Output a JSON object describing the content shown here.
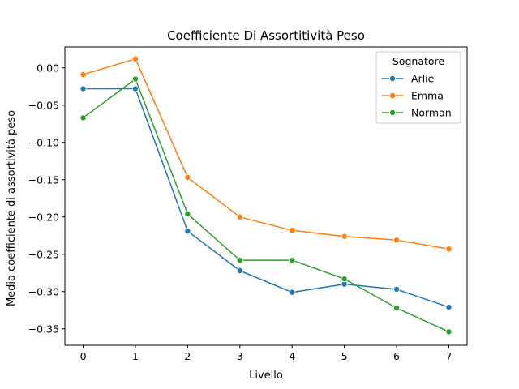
{
  "chart_data": {
    "type": "line",
    "title": "Coefficiente Di Assortitività Peso",
    "xlabel": "Livello",
    "ylabel": "Media coefficiente di assortività peso",
    "x": [
      0,
      1,
      2,
      3,
      4,
      5,
      6,
      7
    ],
    "xlim": [
      -0.35,
      7.35
    ],
    "ylim": [
      -0.372,
      0.028
    ],
    "yticks": [
      0.0,
      -0.05,
      -0.1,
      -0.15,
      -0.2,
      -0.25,
      -0.3,
      -0.35
    ],
    "ytick_labels": [
      "0.00",
      "−0.05",
      "−0.10",
      "−0.15",
      "−0.20",
      "−0.25",
      "−0.30",
      "−0.35"
    ],
    "xtick_labels": [
      "0",
      "1",
      "2",
      "3",
      "4",
      "5",
      "6",
      "7"
    ],
    "grid": false,
    "legend": {
      "title": "Sognatore",
      "placement": "top-right"
    },
    "series": [
      {
        "name": "Arlie",
        "color": "#1f77b4",
        "values": [
          -0.028,
          -0.028,
          -0.219,
          -0.272,
          -0.301,
          -0.29,
          -0.297,
          -0.321
        ]
      },
      {
        "name": "Emma",
        "color": "#ff7f0e",
        "values": [
          -0.009,
          0.012,
          -0.147,
          -0.2,
          -0.218,
          -0.226,
          -0.231,
          -0.243
        ]
      },
      {
        "name": "Norman",
        "color": "#2ca02c",
        "values": [
          -0.067,
          -0.015,
          -0.196,
          -0.258,
          -0.258,
          -0.283,
          -0.322,
          -0.354
        ]
      }
    ]
  }
}
